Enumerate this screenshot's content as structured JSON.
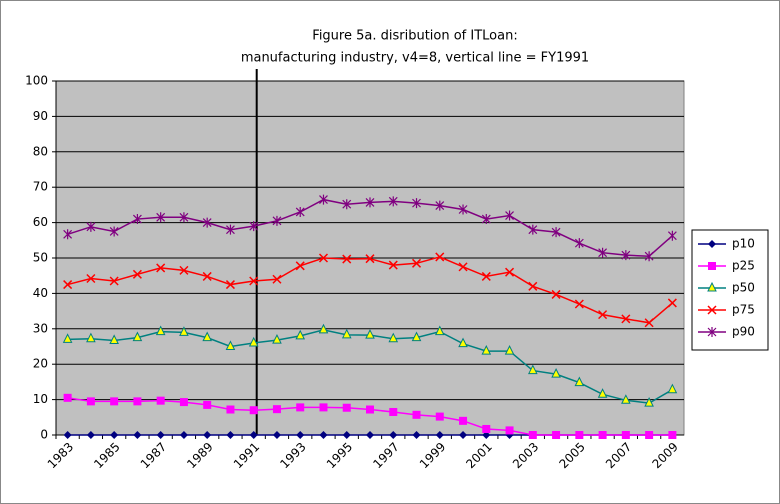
{
  "chart_data": {
    "type": "line",
    "title": [
      "Figure 5a. disribution of ITLoan:",
      "manufacturing industry, v4=8, vertical line = FY1991"
    ],
    "categories": [
      1983,
      null,
      1985,
      null,
      1987,
      null,
      1989,
      null,
      1991,
      null,
      1993,
      null,
      1995,
      null,
      1997,
      null,
      1999,
      null,
      2001,
      null,
      2003,
      null,
      2005,
      null,
      2007,
      null,
      2009
    ],
    "vertical_line": 1991,
    "ylim": [
      0,
      100
    ],
    "yticks": [
      0,
      10,
      20,
      30,
      40,
      50,
      60,
      70,
      80,
      90,
      100
    ],
    "grid": true,
    "legend": "right",
    "series": [
      {
        "name": "p10",
        "color": "#000080",
        "marker": "diamond",
        "values": [
          0,
          0,
          0,
          0,
          0,
          0,
          0,
          0,
          0,
          0,
          0,
          0,
          0,
          0,
          0,
          0,
          0,
          0,
          0,
          0,
          0,
          0,
          0,
          0,
          0,
          0,
          0
        ]
      },
      {
        "name": "p25",
        "color": "#ff00ff",
        "marker": "square",
        "values": [
          10.5,
          9.5,
          9.5,
          9.5,
          9.7,
          9.3,
          8.5,
          7.2,
          7.0,
          7.3,
          7.8,
          7.8,
          7.7,
          7.2,
          6.5,
          5.7,
          5.2,
          4.0,
          1.7,
          1.3,
          0,
          0,
          0,
          0,
          0,
          0,
          0
        ]
      },
      {
        "name": "p50",
        "color": "#008080",
        "marker": "triangle",
        "values": [
          27,
          27.2,
          26.7,
          27.5,
          29.2,
          29,
          27.5,
          25,
          26,
          26.8,
          28,
          29.7,
          28.3,
          28.2,
          27.2,
          27.5,
          29.2,
          25.8,
          23.7,
          23.7,
          18.2,
          17.2,
          14.8,
          11.5,
          9.8,
          9,
          12.8
        ]
      },
      {
        "name": "p75",
        "color": "#ff0000",
        "marker": "x",
        "values": [
          42.5,
          44.2,
          43.5,
          45.4,
          47.2,
          46.5,
          44.8,
          42.5,
          43.5,
          44,
          47.8,
          50,
          49.7,
          49.8,
          48,
          48.5,
          50.3,
          47.5,
          44.8,
          46,
          42,
          39.7,
          37,
          34,
          32.8,
          31.7,
          37.3
        ]
      },
      {
        "name": "p90",
        "color": "#800080",
        "marker": "star",
        "values": [
          56.7,
          58.8,
          57.5,
          61,
          61.5,
          61.5,
          60,
          58,
          59,
          60.5,
          63,
          66.5,
          65.2,
          65.7,
          66,
          65.5,
          64.8,
          63.7,
          61,
          62,
          58,
          57.3,
          54.2,
          51.5,
          50.8,
          50.5,
          56.3
        ]
      }
    ]
  }
}
